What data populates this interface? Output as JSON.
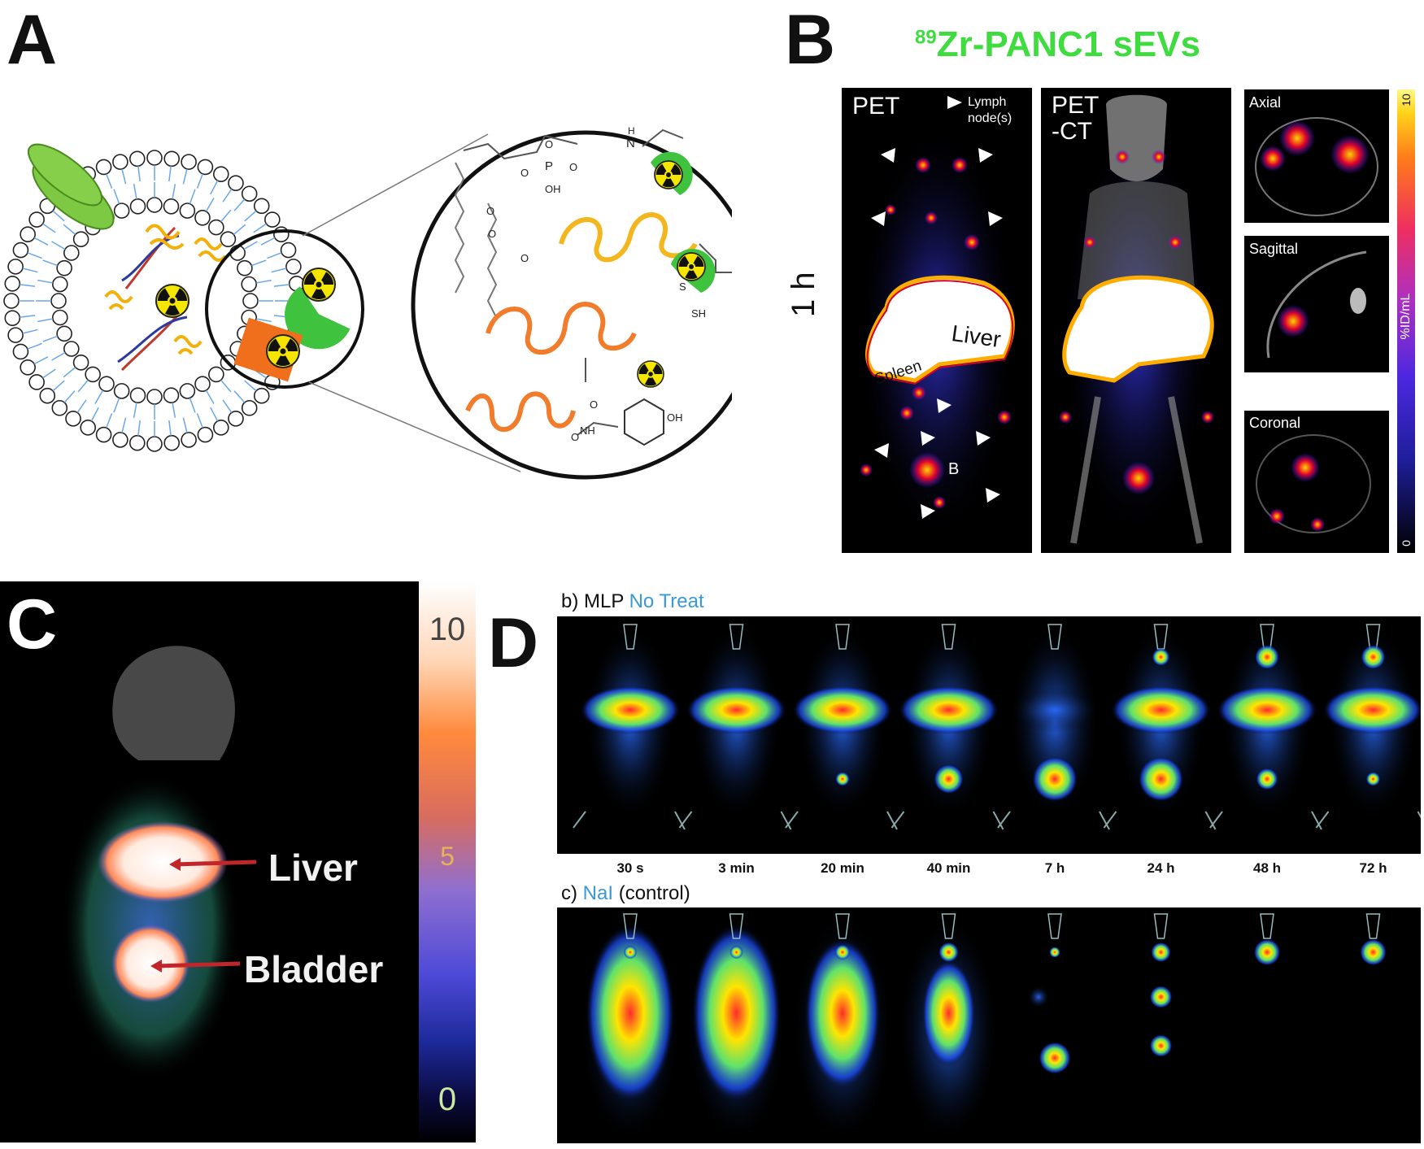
{
  "panels": {
    "a": {
      "letter": "A"
    },
    "b": {
      "letter": "B",
      "title_sup": "89",
      "title_main": "Zr-PANC1 sEVs",
      "title_color": "#3fdc3f",
      "time_label": "1 h",
      "pet_label": "PET",
      "petct_label_line1": "PET",
      "petct_label_line2": "-CT",
      "lymph_label_line1": "Lymph",
      "lymph_label_line2": "node(s)",
      "liver_label": "Liver",
      "spleen_label": "Spleen",
      "bladder_label": "B",
      "views": [
        "Axial",
        "Sagittal",
        "Coronal"
      ],
      "scale_max": "10",
      "scale_min": "0",
      "scale_unit": "%ID/mL"
    },
    "c": {
      "letter": "C",
      "liver_label": "Liver",
      "bladder_label": "Bladder",
      "scale_top": "10",
      "scale_mid": "5",
      "scale_bottom": "0"
    },
    "d": {
      "letter": "D",
      "row_b_prefix": "b) MLP ",
      "row_b_accent": "No Treat",
      "row_c_prefix": "c) ",
      "row_c_accent": "NaI",
      "row_c_suffix": " (control)",
      "accent_color": "#3a9ad9",
      "timepoints": [
        "30 s",
        "3 min",
        "20 min",
        "40 min",
        "7 h",
        "24 h",
        "48 h",
        "72 h"
      ]
    }
  },
  "chemistry": {
    "nh": "N",
    "h": "H",
    "p": "P",
    "o1": "O",
    "o2": "O",
    "oh1": "OH",
    "o3": "O",
    "o4": "O",
    "o5": "O",
    "o6": "O",
    "s": "S",
    "sh": "SH",
    "o7": "O",
    "o8": "O",
    "nh2": "NH",
    "oh2": "OH"
  }
}
